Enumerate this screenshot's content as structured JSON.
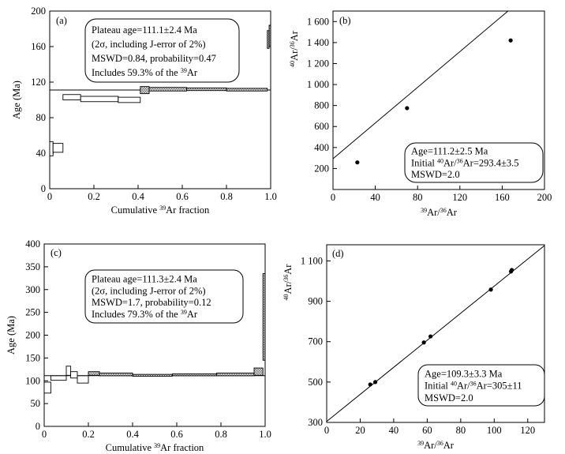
{
  "chart_data": [
    {
      "type": "step",
      "panel_label": "(a)",
      "xlabel_pre": "Cumulative ",
      "xlabel_sup": "39",
      "xlabel_post": "Ar fraction",
      "ylabel": "Age (Ma)",
      "xlim": [
        0,
        1.0
      ],
      "ylim": [
        0,
        200
      ],
      "xticks": [
        0,
        0.2,
        0.4,
        0.6,
        0.8,
        1.0
      ],
      "xtick_labels": [
        "0",
        "0.2",
        "0.4",
        "0.6",
        "0.8",
        "1.0"
      ],
      "yticks": [
        0,
        40,
        80,
        120,
        160,
        200
      ],
      "ytick_labels": [
        "0",
        "40",
        "80",
        "120",
        "160",
        "200"
      ],
      "plateau_age": 111.1,
      "steps": [
        {
          "x0": 0.0,
          "x1": 0.015,
          "y": 45,
          "e": 8,
          "plateau": false
        },
        {
          "x0": 0.015,
          "x1": 0.06,
          "y": 46,
          "e": 5,
          "plateau": false
        },
        {
          "x0": 0.06,
          "x1": 0.14,
          "y": 103,
          "e": 3,
          "plateau": false
        },
        {
          "x0": 0.14,
          "x1": 0.31,
          "y": 101,
          "e": 3,
          "plateau": false
        },
        {
          "x0": 0.31,
          "x1": 0.41,
          "y": 100,
          "e": 3,
          "plateau": false
        },
        {
          "x0": 0.41,
          "x1": 0.45,
          "y": 111,
          "e": 4,
          "plateau": true
        },
        {
          "x0": 0.45,
          "x1": 0.62,
          "y": 112,
          "e": 2,
          "plateau": true
        },
        {
          "x0": 0.62,
          "x1": 0.8,
          "y": 112,
          "e": 1.5,
          "plateau": true
        },
        {
          "x0": 0.8,
          "x1": 0.985,
          "y": 111.5,
          "e": 1.5,
          "plateau": true
        },
        {
          "x0": 0.985,
          "x1": 0.993,
          "y": 168,
          "e": 10,
          "plateau": true
        },
        {
          "x0": 0.993,
          "x1": 1.0,
          "y": 172,
          "e": 12,
          "plateau": true
        }
      ],
      "annotation": [
        {
          "pre": "Plateau age=111.1±2.4 Ma",
          "sup": "",
          "post": ""
        },
        {
          "pre": "(2σ, including J-error of 2%)",
          "sup": "",
          "post": ""
        },
        {
          "pre": "MSWD=0.84, probability=0.47",
          "sup": "",
          "post": ""
        },
        {
          "pre": "Includes 59.3% of the ",
          "sup": "39",
          "post": "Ar"
        }
      ]
    },
    {
      "type": "scatter",
      "panel_label": "(b)",
      "xlabel_sup1": "39",
      "xlabel_mid": "Ar/",
      "xlabel_sup2": "36",
      "xlabel_post": "Ar",
      "ylabel_sup1": "40",
      "ylabel_mid": "Ar/",
      "ylabel_sup2": "36",
      "ylabel_post": "Ar",
      "xlim": [
        0,
        200
      ],
      "ylim": [
        0,
        1700
      ],
      "xticks": [
        0,
        40,
        80,
        120,
        160,
        200
      ],
      "xtick_labels": [
        "0",
        "40",
        "80",
        "120",
        "160",
        "200"
      ],
      "yticks": [
        200,
        400,
        600,
        800,
        1000,
        1200,
        1400,
        1600
      ],
      "ytick_labels": [
        "200",
        "400",
        "600",
        "800",
        "1 000",
        "1 200",
        "1 400",
        "1 600"
      ],
      "points": [
        {
          "x": 23,
          "y": 258
        },
        {
          "x": 70,
          "y": 775
        },
        {
          "x": 168,
          "y": 1420
        }
      ],
      "line": {
        "intercept": 293.4,
        "slope": 8.5
      },
      "annotation": [
        {
          "pre": "Age=111.2±2.5 Ma",
          "sup1": "",
          "mid": "",
          "sup2": "",
          "post": ""
        },
        {
          "pre": "Initial ",
          "sup1": "40",
          "mid": "Ar/",
          "sup2": "36",
          "post": "Ar=293.4±3.5"
        },
        {
          "pre": "MSWD=2.0",
          "sup1": "",
          "mid": "",
          "sup2": "",
          "post": ""
        }
      ]
    },
    {
      "type": "step",
      "panel_label": "(c)",
      "xlabel_pre": "Cumulative ",
      "xlabel_sup": "39",
      "xlabel_post": "Ar fraction",
      "ylabel": "Age (Ma)",
      "xlim": [
        0,
        1.0
      ],
      "ylim": [
        0,
        400
      ],
      "xticks": [
        0,
        0.2,
        0.4,
        0.6,
        0.8,
        1.0
      ],
      "xtick_labels": [
        "0",
        "0.2",
        "0.4",
        "0.6",
        "0.8",
        "1.0"
      ],
      "yticks": [
        0,
        50,
        100,
        150,
        200,
        250,
        300,
        350,
        400
      ],
      "ytick_labels": [
        "0",
        "50",
        "100",
        "150",
        "200",
        "250",
        "300",
        "350",
        "400"
      ],
      "plateau_age": 111.3,
      "steps": [
        {
          "x0": 0.0,
          "x1": 0.03,
          "y": 85,
          "e": 12,
          "plateau": false
        },
        {
          "x0": 0.03,
          "x1": 0.1,
          "y": 106,
          "e": 5,
          "plateau": false
        },
        {
          "x0": 0.1,
          "x1": 0.12,
          "y": 122,
          "e": 10,
          "plateau": false
        },
        {
          "x0": 0.12,
          "x1": 0.15,
          "y": 113,
          "e": 7,
          "plateau": false
        },
        {
          "x0": 0.15,
          "x1": 0.2,
          "y": 103,
          "e": 8,
          "plateau": false
        },
        {
          "x0": 0.2,
          "x1": 0.25,
          "y": 116,
          "e": 4,
          "plateau": true
        },
        {
          "x0": 0.25,
          "x1": 0.4,
          "y": 114,
          "e": 3,
          "plateau": true
        },
        {
          "x0": 0.4,
          "x1": 0.58,
          "y": 112,
          "e": 2,
          "plateau": true
        },
        {
          "x0": 0.58,
          "x1": 0.78,
          "y": 113,
          "e": 2,
          "plateau": true
        },
        {
          "x0": 0.78,
          "x1": 0.95,
          "y": 114,
          "e": 3,
          "plateau": true
        },
        {
          "x0": 0.95,
          "x1": 0.99,
          "y": 120,
          "e": 8,
          "plateau": true
        },
        {
          "x0": 0.99,
          "x1": 1.0,
          "y": 240,
          "e": 95,
          "plateau": true
        }
      ],
      "annotation": [
        {
          "pre": "Plateau age=111.3±2.4 Ma",
          "sup": "",
          "post": ""
        },
        {
          "pre": "(2σ, including J-error of 2%)",
          "sup": "",
          "post": ""
        },
        {
          "pre": "MSWD=1.7, probability=0.12",
          "sup": "",
          "post": ""
        },
        {
          "pre": "Includes 79.3% of the ",
          "sup": "39",
          "post": "Ar"
        }
      ]
    },
    {
      "type": "scatter",
      "panel_label": "(d)",
      "xlabel_sup1": "39",
      "xlabel_mid": "Ar/",
      "xlabel_sup2": "36",
      "xlabel_post": "Ar",
      "ylabel_sup1": "40",
      "ylabel_mid": "Ar/",
      "ylabel_sup2": "36",
      "ylabel_post": "Ar",
      "xlim": [
        0,
        130
      ],
      "ylim": [
        300,
        1180
      ],
      "xticks": [
        0,
        20,
        40,
        60,
        80,
        100,
        120
      ],
      "xtick_labels": [
        "0",
        "20",
        "40",
        "60",
        "80",
        "100",
        "120"
      ],
      "yticks": [
        300,
        500,
        700,
        900,
        1100
      ],
      "ytick_labels": [
        "300",
        "500",
        "700",
        "900",
        "1 100"
      ],
      "points": [
        {
          "x": 26,
          "y": 488
        },
        {
          "x": 29,
          "y": 500
        },
        {
          "x": 58,
          "y": 696
        },
        {
          "x": 62,
          "y": 726
        },
        {
          "x": 98,
          "y": 958
        },
        {
          "x": 110,
          "y": 1048
        },
        {
          "x": 110.5,
          "y": 1055
        }
      ],
      "line": {
        "intercept": 305,
        "slope": 6.7
      },
      "annotation": [
        {
          "pre": "Age=109.3±3.3 Ma",
          "sup1": "",
          "mid": "",
          "sup2": "",
          "post": ""
        },
        {
          "pre": "Initial ",
          "sup1": "40",
          "mid": "Ar/",
          "sup2": "36",
          "post": "Ar=305±11"
        },
        {
          "pre": "MSWD=2.0",
          "sup1": "",
          "mid": "",
          "sup2": "",
          "post": ""
        }
      ]
    }
  ]
}
